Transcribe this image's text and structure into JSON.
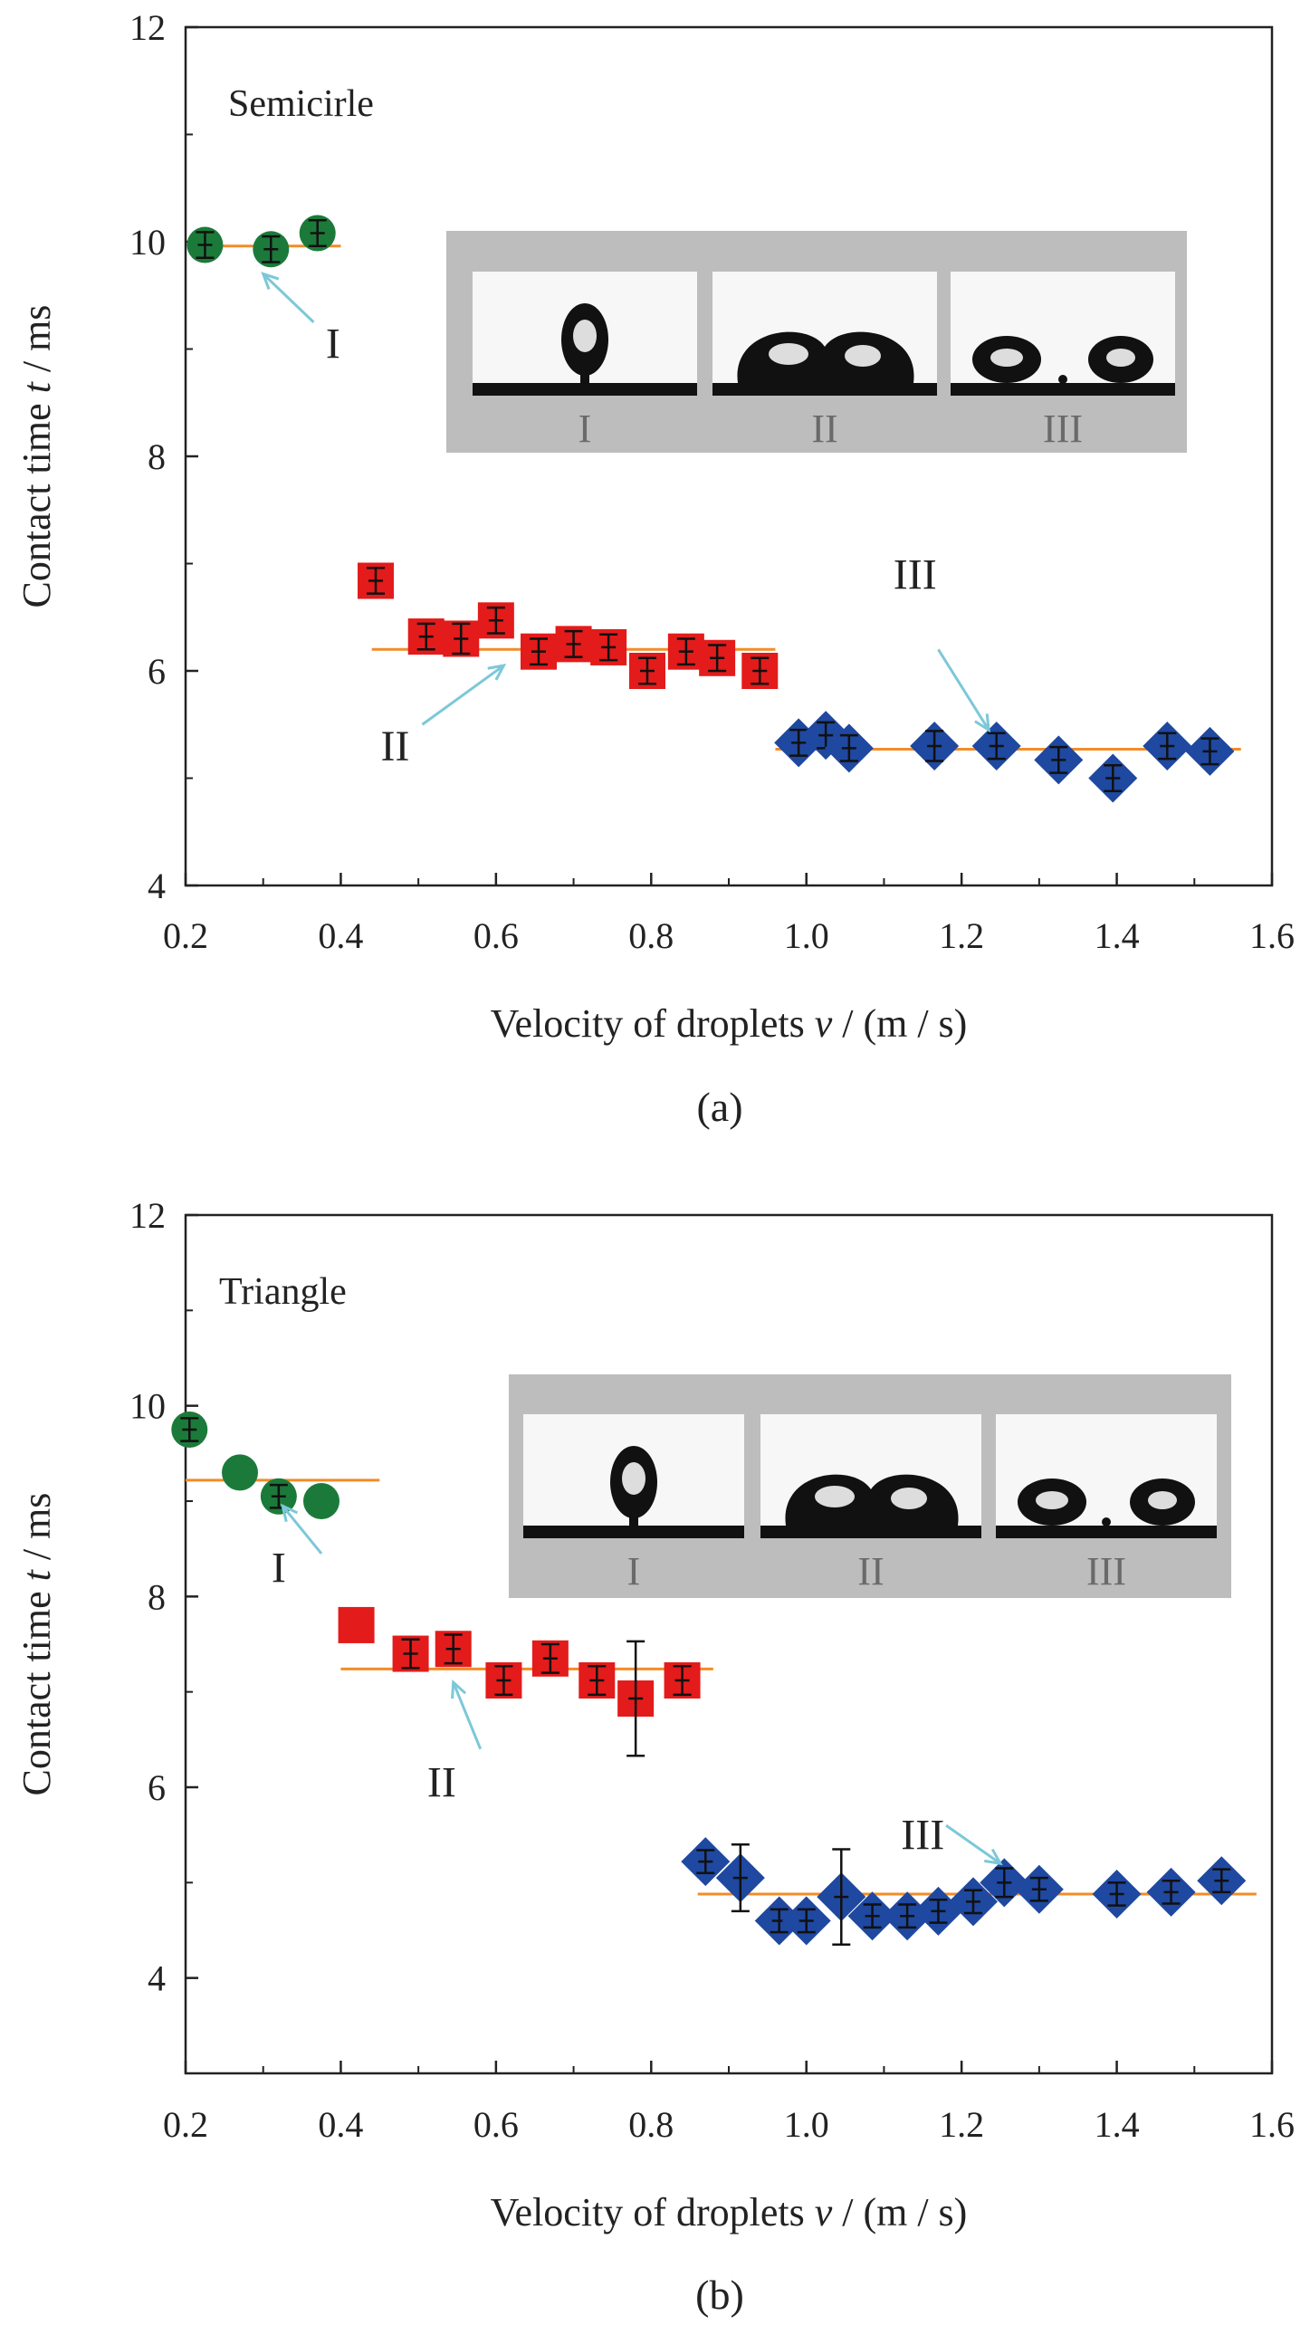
{
  "chart_data": [
    {
      "type": "scatter",
      "title": "Semicirle",
      "caption": "(a)",
      "xlabel_main": "Velocity of droplets ",
      "xlabel_var": "v",
      "xlabel_unit": " / (m / s)",
      "ylabel_main": "Contact time ",
      "ylabel_var": "t",
      "ylabel_unit": " / ms",
      "xlim": [
        0.2,
        1.6
      ],
      "ylim": [
        4,
        12
      ],
      "x_ticks": [
        "0.2",
        "0.4",
        "0.6",
        "0.8",
        "1.0",
        "1.2",
        "1.4",
        "1.6"
      ],
      "y_ticks": [
        "4",
        "6",
        "8",
        "10",
        "12"
      ],
      "series": [
        {
          "name": "I",
          "marker": "circle",
          "color": "#1b7a3a",
          "x": [
            0.225,
            0.31,
            0.37
          ],
          "y": [
            9.97,
            9.93,
            10.08
          ],
          "err": [
            0.12,
            0.12,
            0.12
          ]
        },
        {
          "name": "II",
          "marker": "square",
          "color": "#e31b1b",
          "x": [
            0.445,
            0.51,
            0.555,
            0.6,
            0.655,
            0.7,
            0.745,
            0.795,
            0.845,
            0.885,
            0.94
          ],
          "y": [
            6.84,
            6.32,
            6.3,
            6.47,
            6.18,
            6.25,
            6.22,
            6.0,
            6.18,
            6.12,
            6.0
          ],
          "err": [
            0.12,
            0.12,
            0.14,
            0.12,
            0.12,
            0.12,
            0.12,
            0.12,
            0.12,
            0.12,
            0.12
          ]
        },
        {
          "name": "III",
          "marker": "diamond",
          "color": "#1f48a0",
          "x": [
            0.99,
            1.025,
            1.055,
            1.165,
            1.245,
            1.325,
            1.395,
            1.465,
            1.52
          ],
          "y": [
            5.33,
            5.4,
            5.28,
            5.3,
            5.3,
            5.17,
            5.0,
            5.3,
            5.25
          ],
          "err": [
            0.12,
            0.12,
            0.12,
            0.14,
            0.12,
            0.12,
            0.12,
            0.12,
            0.12
          ]
        }
      ],
      "fit_lines": [
        {
          "x": [
            0.22,
            0.4
          ],
          "y": 9.96
        },
        {
          "x": [
            0.44,
            0.96
          ],
          "y": 6.2
        },
        {
          "x": [
            0.96,
            1.56
          ],
          "y": 5.27
        }
      ],
      "annotations": [
        {
          "text": "I",
          "label_x": 0.39,
          "label_y": 9.05,
          "arrow_from": [
            0.365,
            9.25
          ],
          "arrow_to": [
            0.3,
            9.7
          ]
        },
        {
          "text": "II",
          "label_x": 0.47,
          "label_y": 5.3,
          "arrow_from": [
            0.505,
            5.5
          ],
          "arrow_to": [
            0.61,
            6.05
          ]
        },
        {
          "text": "III",
          "label_x": 1.14,
          "label_y": 6.9,
          "arrow_from": [
            1.17,
            6.2
          ],
          "arrow_to": [
            1.235,
            5.45
          ]
        }
      ],
      "inset": {
        "labels": [
          "I",
          "II",
          "III"
        ]
      }
    },
    {
      "type": "scatter",
      "title": "Triangle",
      "caption": "(b)",
      "xlabel_main": "Velocity of droplets ",
      "xlabel_var": "v",
      "xlabel_unit": " / (m / s)",
      "ylabel_main": "Contact time ",
      "ylabel_var": "t",
      "ylabel_unit": " / ms",
      "xlim": [
        0.2,
        1.6
      ],
      "ylim": [
        3,
        12
      ],
      "x_ticks": [
        "0.2",
        "0.4",
        "0.6",
        "0.8",
        "1.0",
        "1.2",
        "1.4",
        "1.6"
      ],
      "y_ticks": [
        "4",
        "6",
        "8",
        "10",
        "12"
      ],
      "series": [
        {
          "name": "I",
          "marker": "circle",
          "color": "#1b7a3a",
          "x": [
            0.205,
            0.27,
            0.32,
            0.375
          ],
          "y": [
            9.75,
            9.3,
            9.05,
            9.0
          ],
          "err": [
            0.12,
            0.0,
            0.12,
            0.0
          ]
        },
        {
          "name": "II",
          "marker": "square",
          "color": "#e31b1b",
          "x": [
            0.42,
            0.49,
            0.545,
            0.61,
            0.67,
            0.73,
            0.78,
            0.84
          ],
          "y": [
            7.7,
            7.4,
            7.45,
            7.12,
            7.35,
            7.12,
            6.93,
            7.12
          ],
          "err": [
            0.0,
            0.15,
            0.15,
            0.15,
            0.15,
            0.15,
            0.6,
            0.15
          ]
        },
        {
          "name": "III",
          "marker": "diamond",
          "color": "#1f48a0",
          "x": [
            0.87,
            0.915,
            0.965,
            1.0,
            1.045,
            1.085,
            1.13,
            1.17,
            1.215,
            1.255,
            1.3,
            1.4,
            1.47,
            1.535
          ],
          "y": [
            5.22,
            5.05,
            4.6,
            4.6,
            4.85,
            4.65,
            4.65,
            4.7,
            4.8,
            5.0,
            4.93,
            4.88,
            4.9,
            5.02
          ],
          "err": [
            0.12,
            0.35,
            0.12,
            0.12,
            0.5,
            0.12,
            0.12,
            0.12,
            0.12,
            0.15,
            0.12,
            0.12,
            0.12,
            0.12
          ]
        }
      ],
      "fit_lines": [
        {
          "x": [
            0.2,
            0.45
          ],
          "y": 9.22
        },
        {
          "x": [
            0.4,
            0.88
          ],
          "y": 7.24
        },
        {
          "x": [
            0.86,
            1.58
          ],
          "y": 4.88
        }
      ],
      "annotations": [
        {
          "text": "I",
          "label_x": 0.32,
          "label_y": 8.3,
          "arrow_from": [
            0.375,
            8.45
          ],
          "arrow_to": [
            0.325,
            8.95
          ]
        },
        {
          "text": "II",
          "label_x": 0.53,
          "label_y": 6.05,
          "arrow_from": [
            0.58,
            6.4
          ],
          "arrow_to": [
            0.545,
            7.1
          ]
        },
        {
          "text": "III",
          "label_x": 1.15,
          "label_y": 5.5,
          "arrow_from": [
            1.18,
            5.6
          ],
          "arrow_to": [
            1.25,
            5.2
          ]
        }
      ],
      "inset": {
        "labels": [
          "I",
          "II",
          "III"
        ]
      }
    }
  ]
}
